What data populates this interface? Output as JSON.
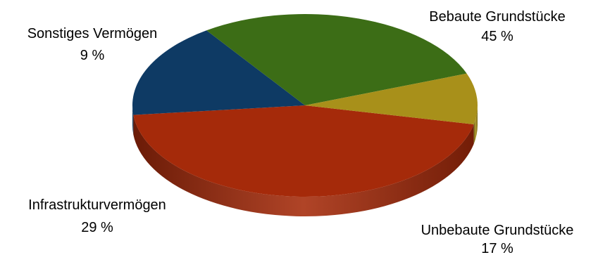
{
  "chart_data": {
    "type": "pie",
    "title": "",
    "categories": [
      "Bebaute Grundstücke",
      "Unbebaute Grundstücke",
      "Infrastrukturvermögen",
      "Sonstiges Vermögen"
    ],
    "values": [
      45,
      17,
      29,
      9
    ],
    "value_labels": [
      "45 %",
      "17 %",
      "29 %",
      "9 %"
    ],
    "colors": [
      "#a52a0a",
      "#0e3a64",
      "#3c6d16",
      "#a8901a"
    ],
    "legend": "none",
    "style": "3d"
  }
}
